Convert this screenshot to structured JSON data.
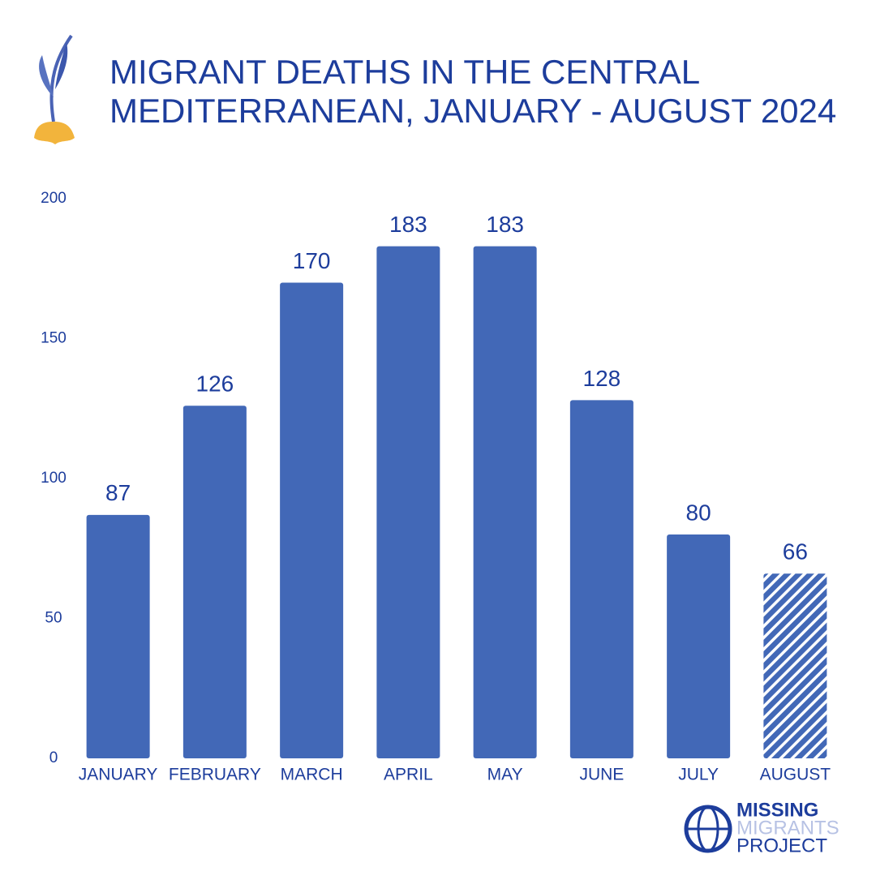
{
  "chart_data": {
    "type": "bar",
    "title_lines": [
      "MIGRANT DEATHS IN THE CENTRAL",
      "MEDITERRANEAN, JANUARY - AUGUST 2024"
    ],
    "categories": [
      "JANUARY",
      "FEBRUARY",
      "MARCH",
      "APRIL",
      "MAY",
      "JUNE",
      "JULY",
      "AUGUST"
    ],
    "values": [
      87,
      126,
      170,
      183,
      183,
      128,
      80,
      66
    ],
    "hatched": [
      false,
      false,
      false,
      false,
      false,
      false,
      false,
      true
    ],
    "color": "#4268b7",
    "ylim": [
      0,
      200
    ],
    "yticks": [
      0,
      50,
      100,
      150,
      200
    ],
    "grid": false,
    "data_labels": true
  },
  "logo": {
    "lines": [
      "MISSING",
      "MIGRANTS",
      "PROJECT"
    ]
  }
}
